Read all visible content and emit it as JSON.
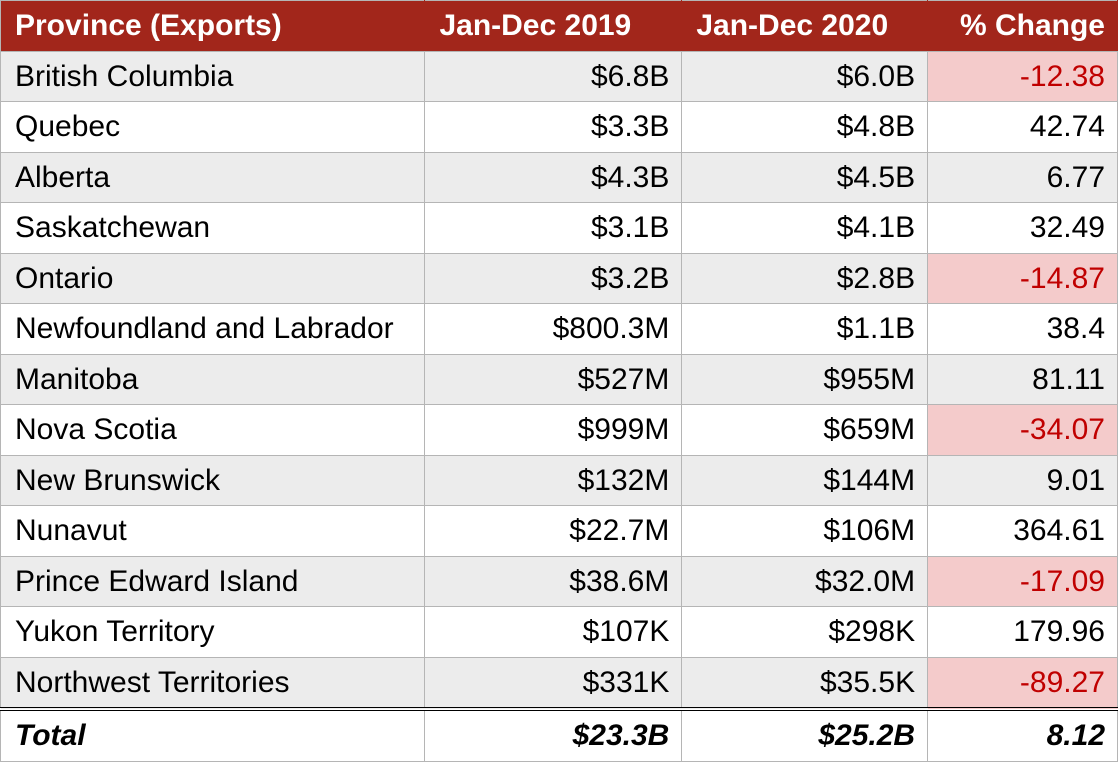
{
  "table": {
    "headers": {
      "province": "Province (Exports)",
      "period1": "Jan-Dec 2019",
      "period2": "Jan-Dec 2020",
      "change": "% Change"
    },
    "rows": [
      {
        "province": "British Columbia",
        "v2019": "$6.8B",
        "v2020": "$6.0B",
        "change": "-12.38",
        "neg": true
      },
      {
        "province": "Quebec",
        "v2019": "$3.3B",
        "v2020": "$4.8B",
        "change": "42.74",
        "neg": false
      },
      {
        "province": "Alberta",
        "v2019": "$4.3B",
        "v2020": "$4.5B",
        "change": "6.77",
        "neg": false
      },
      {
        "province": "Saskatchewan",
        "v2019": "$3.1B",
        "v2020": "$4.1B",
        "change": "32.49",
        "neg": false
      },
      {
        "province": "Ontario",
        "v2019": "$3.2B",
        "v2020": "$2.8B",
        "change": "-14.87",
        "neg": true
      },
      {
        "province": "Newfoundland and Labrador",
        "v2019": "$800.3M",
        "v2020": "$1.1B",
        "change": "38.4",
        "neg": false
      },
      {
        "province": "Manitoba",
        "v2019": "$527M",
        "v2020": "$955M",
        "change": "81.11",
        "neg": false
      },
      {
        "province": "Nova Scotia",
        "v2019": "$999M",
        "v2020": "$659M",
        "change": "-34.07",
        "neg": true
      },
      {
        "province": "New Brunswick",
        "v2019": "$132M",
        "v2020": "$144M",
        "change": "9.01",
        "neg": false
      },
      {
        "province": "Nunavut",
        "v2019": "$22.7M",
        "v2020": "$106M",
        "change": "364.61",
        "neg": false
      },
      {
        "province": "Prince Edward Island",
        "v2019": "$38.6M",
        "v2020": "$32.0M",
        "change": "-17.09",
        "neg": true
      },
      {
        "province": "Yukon Territory",
        "v2019": "$107K",
        "v2020": "$298K",
        "change": "179.96",
        "neg": false
      },
      {
        "province": "Northwest Territories",
        "v2019": "$331K",
        "v2020": "$35.5K",
        "change": "-89.27",
        "neg": true
      }
    ],
    "total": {
      "label": "Total",
      "v2019": "$23.3B",
      "v2020": "$25.2B",
      "change": "8.12"
    },
    "colors": {
      "header_bg": "#a2261b",
      "header_text": "#ffffff",
      "odd_row_bg": "#ececec",
      "even_row_bg": "#ffffff",
      "neg_bg": "#f4cbcb",
      "neg_text": "#c00000",
      "border": "#b5b5b5"
    }
  }
}
